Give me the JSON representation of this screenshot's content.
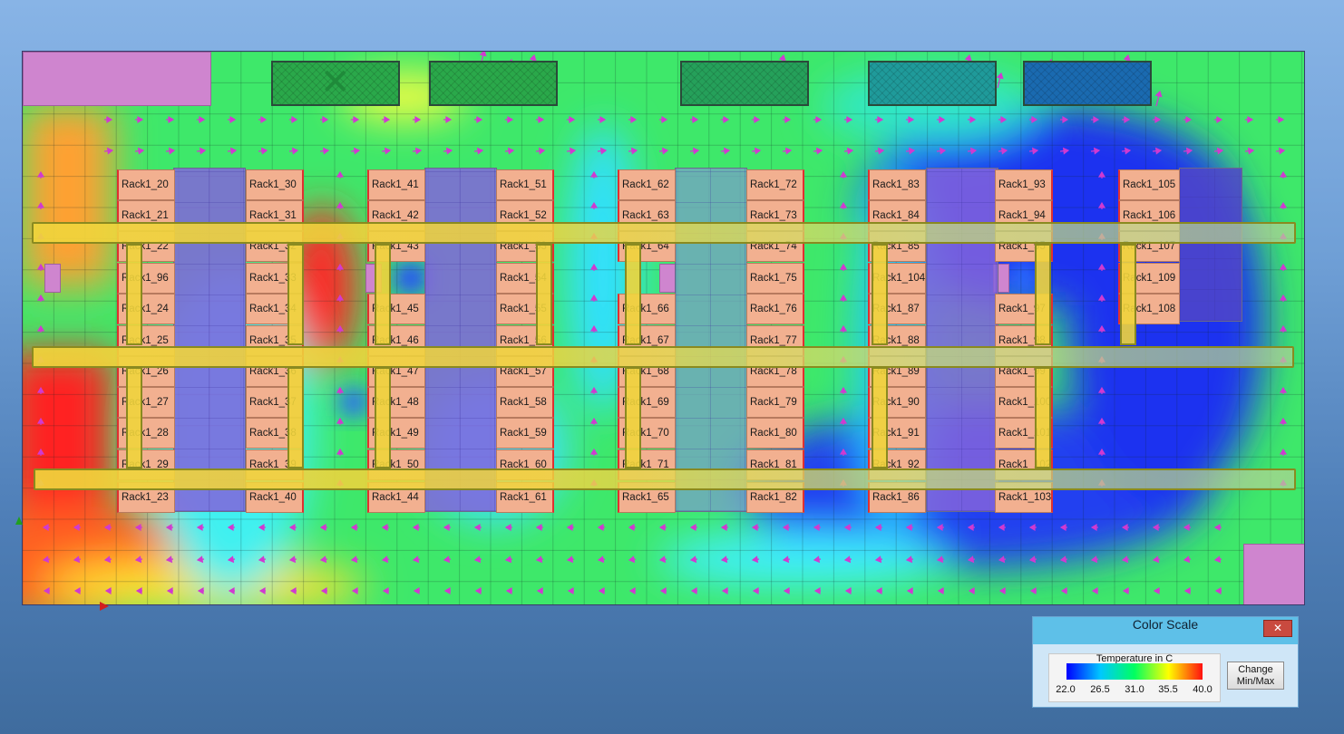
{
  "racks": {
    "aisle1_left": [
      "Rack1_20",
      "Rack1_21",
      "Rack1_22",
      "Rack1_96",
      "Rack1_24",
      "Rack1_25",
      "Rack1_26",
      "Rack1_27",
      "Rack1_28",
      "Rack1_29",
      "Rack1_23"
    ],
    "aisle1_right": [
      "Rack1_30",
      "Rack1_31",
      "Rack1_32",
      "Rack1_33",
      "Rack1_34",
      "Rack1_35",
      "Rack1_36",
      "Rack1_37",
      "Rack1_38",
      "Rack1_39",
      "Rack1_40"
    ],
    "aisle2_left": [
      "Rack1_41",
      "Rack1_42",
      "Rack1_43",
      "Rack1_45",
      "Rack1_46",
      "Rack1_47",
      "Rack1_48",
      "Rack1_49",
      "Rack1_50",
      "Rack1_44"
    ],
    "aisle2_right": [
      "Rack1_51",
      "Rack1_52",
      "Rack1_53",
      "Rack1_54",
      "Rack1_55",
      "Rack1_56",
      "Rack1_57",
      "Rack1_58",
      "Rack1_59",
      "Rack1_60",
      "Rack1_61"
    ],
    "aisle3_left": [
      "Rack1_62",
      "Rack1_63",
      "Rack1_64",
      "Rack1_66",
      "Rack1_67",
      "Rack1_68",
      "Rack1_69",
      "Rack1_70",
      "Rack1_71",
      "Rack1_65"
    ],
    "aisle3_right": [
      "Rack1_72",
      "Rack1_73",
      "Rack1_74",
      "Rack1_75",
      "Rack1_76",
      "Rack1_77",
      "Rack1_78",
      "Rack1_79",
      "Rack1_80",
      "Rack1_81",
      "Rack1_82"
    ],
    "aisle4_left": [
      "Rack1_83",
      "Rack1_84",
      "Rack1_85",
      "Rack1_104",
      "Rack1_87",
      "Rack1_88",
      "Rack1_89",
      "Rack1_90",
      "Rack1_91",
      "Rack1_92",
      "Rack1_86"
    ],
    "aisle4_right": [
      "Rack1_93",
      "Rack1_94",
      "Rack1_95",
      "Rack1_97",
      "Rack1_98",
      "Rack1_99",
      "Rack1_100",
      "Rack1_101",
      "Rack1_102",
      "Rack1_103"
    ],
    "aisle5_left": [
      "Rack1_105",
      "Rack1_106",
      "Rack1_107",
      "Rack1_109",
      "Rack1_108"
    ]
  },
  "color_scale": {
    "title": "Color Scale",
    "close_label": "✕",
    "group_label": "Temperature in C",
    "tick_labels": [
      "22.0",
      "26.5",
      "31.0",
      "35.5",
      "40.0"
    ],
    "change_button_line1": "Change",
    "change_button_line2": "Min/Max",
    "colors": [
      "#0000ff",
      "#00c8ff",
      "#00ff60",
      "#ffff00",
      "#ff1010"
    ]
  },
  "temperature_range": [
    22.0,
    40.0
  ]
}
